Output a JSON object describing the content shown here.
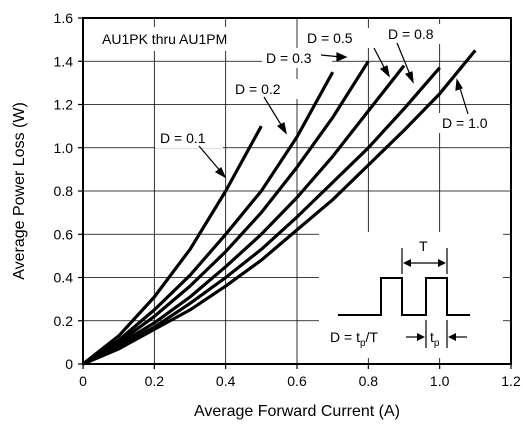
{
  "chart_data": {
    "type": "line",
    "title": "",
    "xlabel": "Average Forward Current (A)",
    "ylabel": "Average Power Loss (W)",
    "xlim": [
      0,
      1.2
    ],
    "ylim": [
      0,
      1.6
    ],
    "x_ticks": [
      "0",
      "0.2",
      "0.4",
      "0.6",
      "0.8",
      "1.0",
      "1.2"
    ],
    "y_ticks": [
      "0",
      "0.2",
      "0.4",
      "0.6",
      "0.8",
      "1.0",
      "1.2",
      "1.4",
      "1.6"
    ],
    "grid": true,
    "annotations": {
      "part_range": "AU1PK thru AU1PM",
      "series_labels": [
        "D = 0.1",
        "D = 0.2",
        "D = 0.3",
        "D = 0.5",
        "D = 0.8",
        "D = 1.0"
      ],
      "inset_period": "T",
      "inset_duty_prefix": "D = t",
      "inset_duty_sub": "p",
      "inset_duty_suffix": "/T",
      "inset_pulse_t": "t",
      "inset_pulse_sub": "p"
    },
    "series": [
      {
        "name": "D = 0.1",
        "x": [
          0,
          0.1,
          0.2,
          0.3,
          0.4,
          0.5
        ],
        "y": [
          0,
          0.13,
          0.31,
          0.53,
          0.8,
          1.1
        ]
      },
      {
        "name": "D = 0.2",
        "x": [
          0,
          0.1,
          0.2,
          0.3,
          0.4,
          0.5,
          0.6,
          0.7
        ],
        "y": [
          0,
          0.11,
          0.25,
          0.41,
          0.6,
          0.8,
          1.05,
          1.35
        ]
      },
      {
        "name": "D = 0.3",
        "x": [
          0,
          0.1,
          0.2,
          0.3,
          0.4,
          0.5,
          0.6,
          0.7,
          0.8
        ],
        "y": [
          0,
          0.1,
          0.22,
          0.36,
          0.52,
          0.7,
          0.91,
          1.14,
          1.4
        ]
      },
      {
        "name": "D = 0.5",
        "x": [
          0,
          0.1,
          0.2,
          0.3,
          0.4,
          0.5,
          0.6,
          0.7,
          0.8,
          0.9
        ],
        "y": [
          0,
          0.09,
          0.19,
          0.31,
          0.45,
          0.6,
          0.77,
          0.96,
          1.17,
          1.38
        ]
      },
      {
        "name": "D = 0.8",
        "x": [
          0,
          0.1,
          0.2,
          0.3,
          0.4,
          0.5,
          0.6,
          0.7,
          0.8,
          0.9,
          1.0
        ],
        "y": [
          0,
          0.08,
          0.17,
          0.28,
          0.4,
          0.53,
          0.68,
          0.84,
          1.0,
          1.18,
          1.37
        ]
      },
      {
        "name": "D = 1.0",
        "x": [
          0,
          0.1,
          0.2,
          0.3,
          0.4,
          0.5,
          0.6,
          0.7,
          0.8,
          0.9,
          1.0,
          1.1
        ],
        "y": [
          0,
          0.07,
          0.16,
          0.25,
          0.36,
          0.48,
          0.62,
          0.76,
          0.92,
          1.08,
          1.25,
          1.45
        ]
      }
    ]
  }
}
